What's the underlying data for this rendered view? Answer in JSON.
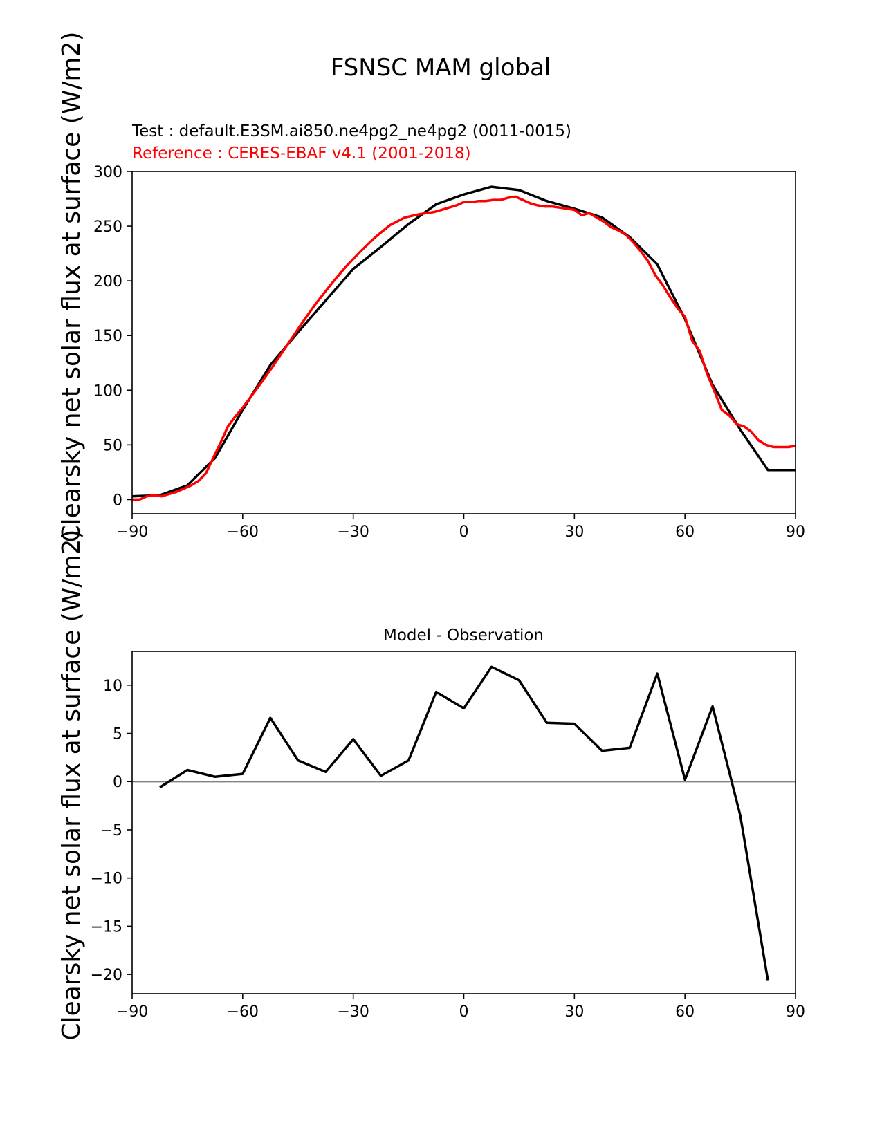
{
  "figure": {
    "title": "FSNSC MAM global",
    "test_label": "Test : default.E3SM.ai850.ne4pg2_ne4pg2 (0011-0015)",
    "reference_label": "Reference : CERES-EBAF v4.1 (2001-2018)",
    "colors": {
      "test": "#000000",
      "reference": "#ff0000",
      "zero_line": "#808080"
    }
  },
  "chart_data": [
    {
      "type": "line",
      "title": "",
      "xlabel": "",
      "ylabel": "Clearsky net solar flux at surface (W/m2)",
      "xlim": [
        -90,
        90
      ],
      "ylim": [
        -13,
        300
      ],
      "xticks": [
        -90,
        -60,
        -30,
        0,
        30,
        60,
        90
      ],
      "xtick_labels": [
        "−90",
        "−60",
        "−30",
        "0",
        "30",
        "60",
        "90"
      ],
      "yticks": [
        0,
        50,
        100,
        150,
        200,
        250,
        300
      ],
      "ytick_labels": [
        "0",
        "50",
        "100",
        "150",
        "200",
        "250",
        "300"
      ],
      "series": [
        {
          "name": "Test",
          "color": "#000000",
          "x": [
            -90,
            -82.5,
            -75,
            -67.5,
            -60,
            -52.5,
            -45,
            -37.5,
            -30,
            -22.5,
            -15,
            -7.5,
            0,
            7.5,
            15,
            22.5,
            30,
            37.5,
            45,
            52.5,
            60,
            67.5,
            75,
            82.5,
            90
          ],
          "y": [
            3,
            4,
            13,
            38,
            82,
            123,
            153,
            182,
            211,
            231,
            252,
            270,
            279,
            286,
            283,
            273,
            266,
            258,
            240,
            215,
            165,
            105,
            64,
            27,
            27
          ]
        },
        {
          "name": "Reference",
          "color": "#ff0000",
          "x": [
            -90,
            -88,
            -86,
            -84,
            -82,
            -80,
            -78,
            -76,
            -74,
            -72,
            -70,
            -68,
            -66,
            -64,
            -62,
            -60,
            -56,
            -52,
            -48,
            -44,
            -40,
            -36,
            -32,
            -28,
            -24,
            -20,
            -16,
            -12,
            -8,
            -6,
            -4,
            -2,
            0,
            2,
            4,
            6,
            8,
            10,
            12,
            14,
            16,
            18,
            20,
            22,
            24,
            26,
            28,
            30,
            32,
            34,
            36,
            38,
            40,
            42,
            44,
            46,
            48,
            50,
            52,
            54,
            56,
            58,
            60,
            62,
            64,
            66,
            68,
            70,
            72,
            74,
            76,
            78,
            80,
            82,
            84,
            86,
            88,
            90
          ],
          "y": [
            0,
            0,
            3,
            4,
            3,
            5,
            7,
            10,
            13,
            17,
            24,
            38,
            52,
            67,
            76,
            84,
            102,
            121,
            141,
            161,
            180,
            197,
            213,
            227,
            240,
            251,
            258,
            261,
            263,
            265,
            267,
            269,
            272,
            272,
            273,
            273,
            274,
            274,
            276,
            277,
            274,
            271,
            269,
            268,
            268,
            267,
            266,
            265,
            260,
            262,
            258,
            254,
            249,
            246,
            242,
            235,
            227,
            218,
            205,
            196,
            185,
            175,
            167,
            145,
            136,
            115,
            99,
            82,
            77,
            69,
            67,
            62,
            54,
            50,
            48,
            48,
            48,
            49
          ]
        }
      ]
    },
    {
      "type": "line",
      "title": "Model - Observation",
      "xlabel": "",
      "ylabel": "Clearsky net solar flux at surface (W/m2)",
      "xlim": [
        -90,
        90
      ],
      "ylim": [
        -22,
        13.5
      ],
      "xticks": [
        -90,
        -60,
        -30,
        0,
        30,
        60,
        90
      ],
      "xtick_labels": [
        "−90",
        "−60",
        "−30",
        "0",
        "30",
        "60",
        "90"
      ],
      "yticks": [
        -20,
        -15,
        -10,
        -5,
        0,
        5,
        10
      ],
      "ytick_labels": [
        "−20",
        "−15",
        "−10",
        "−5",
        "0",
        "5",
        "10"
      ],
      "zero_line": 0,
      "series": [
        {
          "name": "Model - Observation",
          "color": "#000000",
          "x": [
            -82.5,
            -75,
            -67.5,
            -60,
            -52.5,
            -45,
            -37.5,
            -30,
            -22.5,
            -15,
            -7.5,
            0,
            7.5,
            15,
            22.5,
            30,
            37.5,
            45,
            52.5,
            60,
            67.5,
            75,
            82.5
          ],
          "y": [
            -0.6,
            1.2,
            0.5,
            0.8,
            6.6,
            2.2,
            1.0,
            4.4,
            0.6,
            2.2,
            9.3,
            7.6,
            11.9,
            10.5,
            6.1,
            6.0,
            3.2,
            3.5,
            11.2,
            0.2,
            7.8,
            -3.5,
            -20.6
          ]
        }
      ]
    }
  ]
}
